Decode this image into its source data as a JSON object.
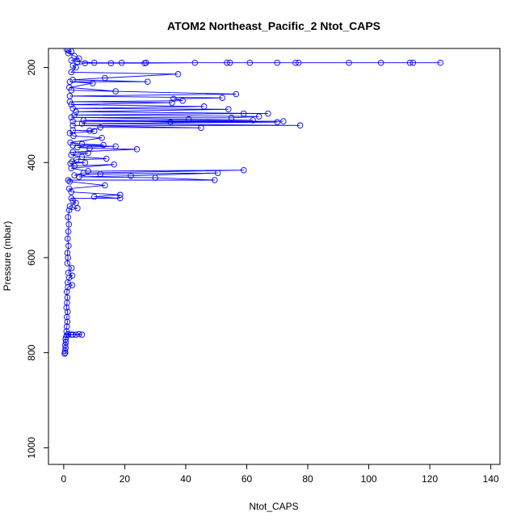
{
  "chart_data": {
    "type": "line",
    "title": "ATOM2 Northeast_Pacific_2 Ntot_CAPS",
    "xlabel": "Ntot_CAPS",
    "ylabel": "Pressure (mbar)",
    "xlim": [
      -5,
      143
    ],
    "ylim": [
      1035,
      160
    ],
    "y_reversed": true,
    "x_ticks": [
      0,
      20,
      40,
      60,
      80,
      100,
      120,
      140
    ],
    "y_ticks": [
      200,
      400,
      600,
      800,
      1000
    ],
    "x_tick_labels": [
      "0",
      "20",
      "40",
      "60",
      "80",
      "100",
      "120",
      "140"
    ],
    "y_tick_labels": [
      "200",
      "400",
      "600",
      "800",
      "1000"
    ],
    "grid": false,
    "legend": "none",
    "line_color": "#0000ff",
    "marker": "open-circle",
    "series": [
      {
        "points": [
          [
            0.3,
            802
          ],
          [
            0.5,
            800
          ],
          [
            0.4,
            796
          ],
          [
            0.6,
            790
          ],
          [
            0.5,
            784
          ],
          [
            0.7,
            778
          ],
          [
            0.6,
            772
          ],
          [
            0.8,
            767
          ],
          [
            1.0,
            763
          ],
          [
            2.5,
            762
          ],
          [
            4.0,
            762
          ],
          [
            6.0,
            762
          ],
          [
            5.0,
            761
          ],
          [
            3.0,
            762
          ],
          [
            1.5,
            761
          ],
          [
            0.9,
            755
          ],
          [
            1.0,
            745
          ],
          [
            1.2,
            735
          ],
          [
            1.0,
            725
          ],
          [
            1.3,
            714
          ],
          [
            0.9,
            705
          ],
          [
            1.1,
            695
          ],
          [
            1.2,
            684
          ],
          [
            1.0,
            672
          ],
          [
            1.4,
            662
          ],
          [
            2.8,
            658
          ],
          [
            1.3,
            652
          ],
          [
            1.8,
            642
          ],
          [
            2.8,
            638
          ],
          [
            1.5,
            632
          ],
          [
            2.6,
            622
          ],
          [
            1.2,
            612
          ],
          [
            1.4,
            600
          ],
          [
            1.2,
            590
          ],
          [
            1.6,
            575
          ],
          [
            1.3,
            560
          ],
          [
            1.5,
            545
          ],
          [
            1.7,
            530
          ],
          [
            1.4,
            515
          ],
          [
            1.8,
            500
          ],
          [
            4.5,
            496
          ],
          [
            2.0,
            492
          ],
          [
            4.0,
            485
          ],
          [
            3.0,
            480
          ],
          [
            2.5,
            475
          ],
          [
            18.5,
            475
          ],
          [
            10.0,
            472
          ],
          [
            18.5,
            468
          ],
          [
            2.5,
            462
          ],
          [
            1.8,
            455
          ],
          [
            13.5,
            448
          ],
          [
            2.0,
            440
          ],
          [
            1.5,
            437
          ],
          [
            49.5,
            437
          ],
          [
            30.0,
            432
          ],
          [
            5.0,
            430
          ],
          [
            22.0,
            428
          ],
          [
            50.5,
            422
          ],
          [
            12.0,
            424
          ],
          [
            3.5,
            427
          ],
          [
            6.5,
            422
          ],
          [
            59.0,
            416
          ],
          [
            8.0,
            418
          ],
          [
            2.5,
            412
          ],
          [
            16.5,
            404
          ],
          [
            3.5,
            407
          ],
          [
            2.2,
            402
          ],
          [
            7.0,
            400
          ],
          [
            2.8,
            398
          ],
          [
            4.2,
            394
          ],
          [
            14.0,
            392
          ],
          [
            6.0,
            388
          ],
          [
            2.5,
            384
          ],
          [
            8.0,
            380
          ],
          [
            3.0,
            378
          ],
          [
            24.0,
            372
          ],
          [
            8.5,
            370
          ],
          [
            4.5,
            368
          ],
          [
            17.0,
            366
          ],
          [
            3.0,
            364
          ],
          [
            13.0,
            363
          ],
          [
            6.0,
            361
          ],
          [
            2.2,
            358
          ],
          [
            12.5,
            348
          ],
          [
            3.2,
            344
          ],
          [
            2.0,
            338
          ],
          [
            10.0,
            334
          ],
          [
            3.0,
            332
          ],
          [
            8.5,
            333
          ],
          [
            12.0,
            326
          ],
          [
            45.0,
            327
          ],
          [
            3.0,
            322
          ],
          [
            77.5,
            322
          ],
          [
            6.0,
            318
          ],
          [
            70.0,
            315
          ],
          [
            3.0,
            313
          ],
          [
            72.0,
            313
          ],
          [
            35.0,
            315
          ],
          [
            6.5,
            311
          ],
          [
            62.0,
            311
          ],
          [
            41.0,
            309
          ],
          [
            2.5,
            305
          ],
          [
            55.0,
            306
          ],
          [
            64.0,
            303
          ],
          [
            3.5,
            300
          ],
          [
            59.0,
            297
          ],
          [
            67.0,
            297
          ],
          [
            4.0,
            293
          ],
          [
            54.0,
            288
          ],
          [
            3.0,
            286
          ],
          [
            46.0,
            282
          ],
          [
            2.5,
            278
          ],
          [
            35.5,
            274
          ],
          [
            2.0,
            272
          ],
          [
            39.0,
            270
          ],
          [
            36.0,
            266
          ],
          [
            52.0,
            264
          ],
          [
            2.0,
            260
          ],
          [
            56.5,
            256
          ],
          [
            2.5,
            248
          ],
          [
            17.0,
            250
          ],
          [
            1.8,
            242
          ],
          [
            9.5,
            233
          ],
          [
            2.0,
            230
          ],
          [
            27.5,
            230
          ],
          [
            3.0,
            226
          ],
          [
            13.5,
            222
          ],
          [
            37.5,
            214
          ],
          [
            2.5,
            210
          ],
          [
            4.0,
            200
          ],
          [
            3.0,
            196
          ],
          [
            7.0,
            191
          ],
          [
            15.5,
            191
          ],
          [
            26.5,
            191
          ],
          [
            43.0,
            190
          ],
          [
            61.0,
            190
          ],
          [
            76.0,
            190
          ],
          [
            104.0,
            190
          ],
          [
            113.5,
            190
          ],
          [
            123.5,
            190
          ],
          [
            114.5,
            190
          ],
          [
            93.5,
            190
          ],
          [
            77.0,
            190
          ],
          [
            70.0,
            190
          ],
          [
            54.5,
            190
          ],
          [
            53.5,
            190
          ],
          [
            27.0,
            190
          ],
          [
            19.0,
            190
          ],
          [
            10.0,
            190
          ],
          [
            4.5,
            188
          ],
          [
            2.5,
            185
          ],
          [
            5.0,
            181
          ],
          [
            3.5,
            176
          ],
          [
            1.5,
            170
          ],
          [
            2.5,
            166
          ],
          [
            1.5,
            164
          ],
          [
            1.0,
            162
          ]
        ]
      }
    ]
  }
}
